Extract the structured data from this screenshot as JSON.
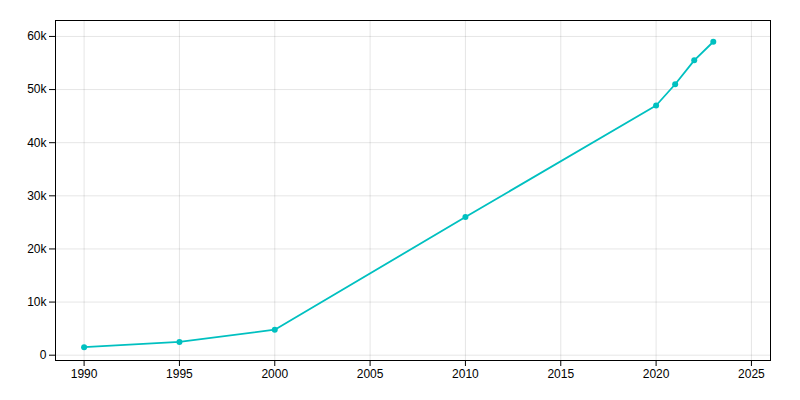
{
  "chart_data": {
    "type": "line",
    "x": [
      1990,
      1995,
      2000,
      2010,
      2020,
      2021,
      2022,
      2023
    ],
    "values": [
      1500,
      2500,
      4800,
      26000,
      47000,
      51000,
      55500,
      59000
    ],
    "color": "#00c0c0",
    "marker": "o",
    "xlim": [
      1988.5,
      2026
    ],
    "xticks": [
      1990,
      1995,
      2000,
      2005,
      2010,
      2015,
      2020,
      2025
    ],
    "ylim": [
      -1000,
      63000
    ],
    "yticks": [
      0,
      {
        "value": 10000,
        "label": "10k"
      },
      {
        "value": 20000,
        "label": "20k"
      },
      {
        "value": 30000,
        "label": "30k"
      },
      {
        "value": 40000,
        "label": "40k"
      },
      {
        "value": 50000,
        "label": "50k"
      },
      {
        "value": 60000,
        "label": "60k"
      }
    ],
    "grid": true
  }
}
